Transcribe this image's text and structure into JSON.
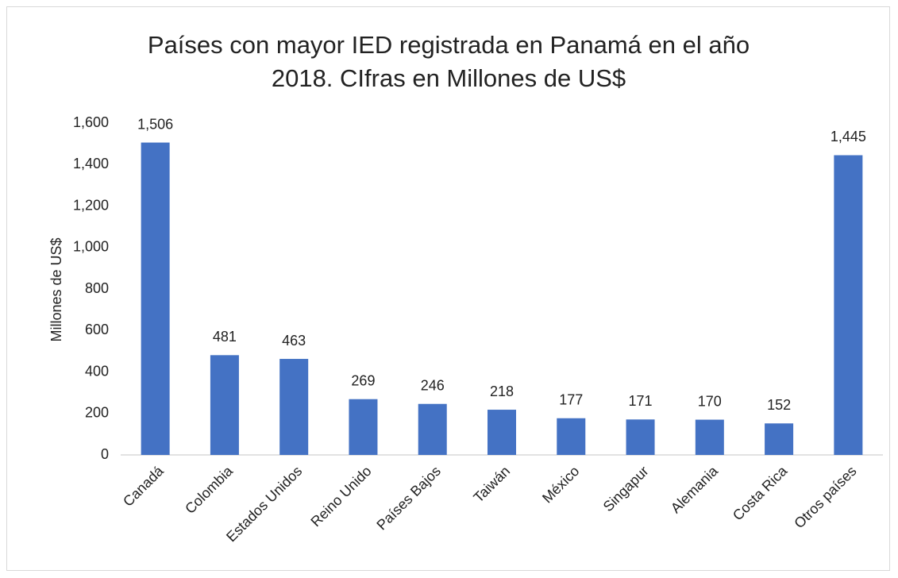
{
  "chart_data": {
    "type": "bar",
    "title": "Países con mayor IED registrada en Panamá en el año 2018. CIfras en Millones de US$",
    "y_label": "Millones de US$",
    "categories": [
      "Canadá",
      "Colombia",
      "Estados Unidos",
      "Reino Unido",
      "Países Bajos",
      "Taiwán",
      "México",
      "Singapur",
      "Alemania",
      "Costa Rica",
      "Otros países"
    ],
    "values": [
      1506,
      481,
      463,
      269,
      246,
      218,
      177,
      171,
      170,
      152,
      1445
    ],
    "value_labels": [
      "1,506",
      "481",
      "463",
      "269",
      "246",
      "218",
      "177",
      "171",
      "170",
      "152",
      "1,445"
    ],
    "color": "#4472c4",
    "ylim": [
      0,
      1600
    ],
    "yticks": [
      0,
      200,
      400,
      600,
      800,
      {
        "value": 1000,
        "label": "1,000"
      },
      {
        "value": 1200,
        "label": "1,200"
      },
      {
        "value": 1400,
        "label": "1,400"
      },
      {
        "value": 1600,
        "label": "1,600"
      }
    ],
    "grid": false
  }
}
